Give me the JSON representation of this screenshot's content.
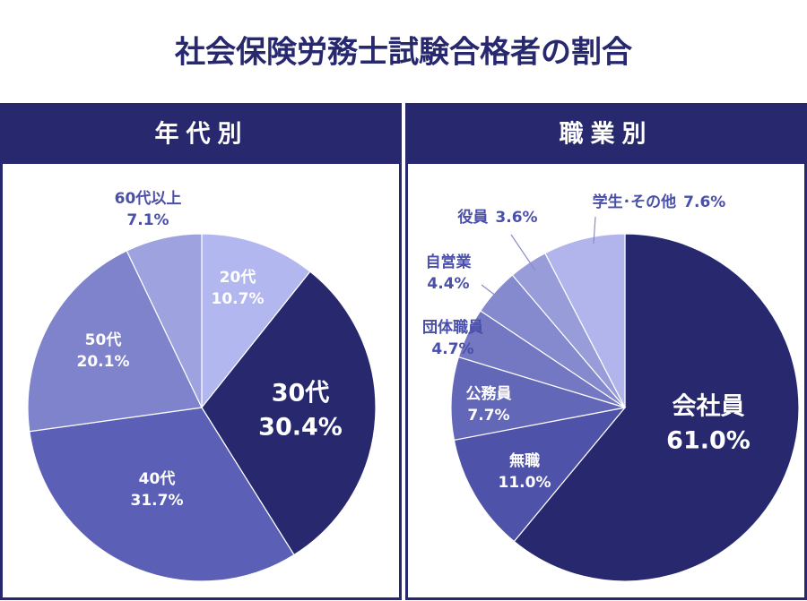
{
  "title": "社会保険労務士試験合格者の割合",
  "chart_data": [
    {
      "type": "pie",
      "title": "年代別",
      "categories": [
        "20代",
        "30代",
        "40代",
        "50代",
        "60代以上"
      ],
      "values": [
        10.7,
        30.4,
        31.7,
        20.1,
        7.1
      ],
      "value_labels": [
        "10.7%",
        "30.4%",
        "31.7%",
        "20.1%",
        "7.1%"
      ],
      "colors": [
        "#b3b7ef",
        "#27286e",
        "#5b5fb5",
        "#7e83cc",
        "#9ea2de"
      ]
    },
    {
      "type": "pie",
      "title": "職業別",
      "categories": [
        "会社員",
        "無職",
        "公務員",
        "団体職員",
        "自営業",
        "役員",
        "学生･その他"
      ],
      "values": [
        61.0,
        11.0,
        7.7,
        4.7,
        4.4,
        3.6,
        7.6
      ],
      "value_labels": [
        "61.0%",
        "11.0%",
        "7.7%",
        "4.7%",
        "4.4%",
        "3.6%",
        "7.6%"
      ],
      "colors": [
        "#27286e",
        "#4e52a8",
        "#6367b8",
        "#7478c3",
        "#8589cd",
        "#989cd9",
        "#b1b5ec"
      ]
    }
  ]
}
